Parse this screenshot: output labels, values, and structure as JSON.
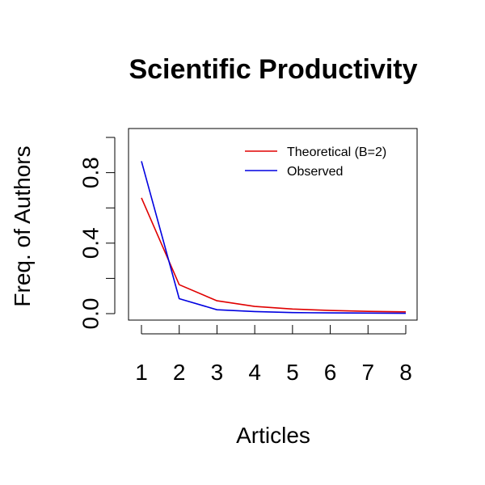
{
  "chart_data": {
    "type": "line",
    "title": "Scientific Productivity",
    "xlabel": "Articles",
    "ylabel": "Freq. of Authors",
    "x": [
      1,
      2,
      3,
      4,
      5,
      6,
      7,
      8
    ],
    "xlim": [
      1,
      8
    ],
    "ylim": [
      0,
      1.0
    ],
    "x_ticks": [
      "1",
      "2",
      "3",
      "4",
      "5",
      "6",
      "7",
      "8"
    ],
    "y_ticks": [
      0.0,
      0.2,
      0.4,
      0.6,
      0.8,
      1.0
    ],
    "y_tick_labels": [
      "0.0",
      "",
      "0.4",
      "",
      "0.8",
      ""
    ],
    "grid": false,
    "legend_position": "top-right",
    "series": [
      {
        "name": "Theoretical (B=2)",
        "color": "#e00000",
        "values": [
          0.657,
          0.164,
          0.073,
          0.041,
          0.026,
          0.018,
          0.013,
          0.01
        ]
      },
      {
        "name": "Observed",
        "color": "#0000e0",
        "values": [
          0.865,
          0.085,
          0.022,
          0.012,
          0.006,
          0.004,
          0.003,
          0.002
        ]
      }
    ]
  }
}
